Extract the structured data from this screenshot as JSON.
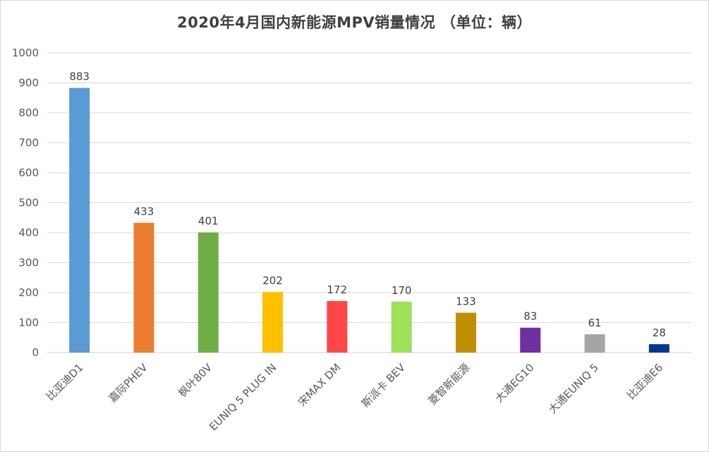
{
  "chart_data": {
    "type": "bar",
    "title": "2020年4月国内新能源MPV销量情况 （单位：辆）",
    "categories": [
      "比亚迪D1",
      "嘉际PHEV",
      "枫叶80V",
      "EUNIQ 5 PLUG IN",
      "宋MAX DM",
      "斯派卡 BEV",
      "菱智新能源",
      "大通EG10",
      "大通EUNIQ 5",
      "比亚迪E6"
    ],
    "values": [
      883,
      433,
      401,
      202,
      172,
      170,
      133,
      83,
      61,
      28
    ],
    "colors": [
      "#5b9bd5",
      "#ed7d31",
      "#70ad47",
      "#ffc000",
      "#ff4747",
      "#9ee05a",
      "#bf8f00",
      "#7030a0",
      "#a5a5a5",
      "#003893"
    ],
    "ylim": [
      0,
      1000
    ],
    "yticks": [
      0,
      100,
      200,
      300,
      400,
      500,
      600,
      700,
      800,
      900,
      1000
    ],
    "xlabel": "",
    "ylabel": "",
    "grid": true,
    "legend": "none"
  }
}
